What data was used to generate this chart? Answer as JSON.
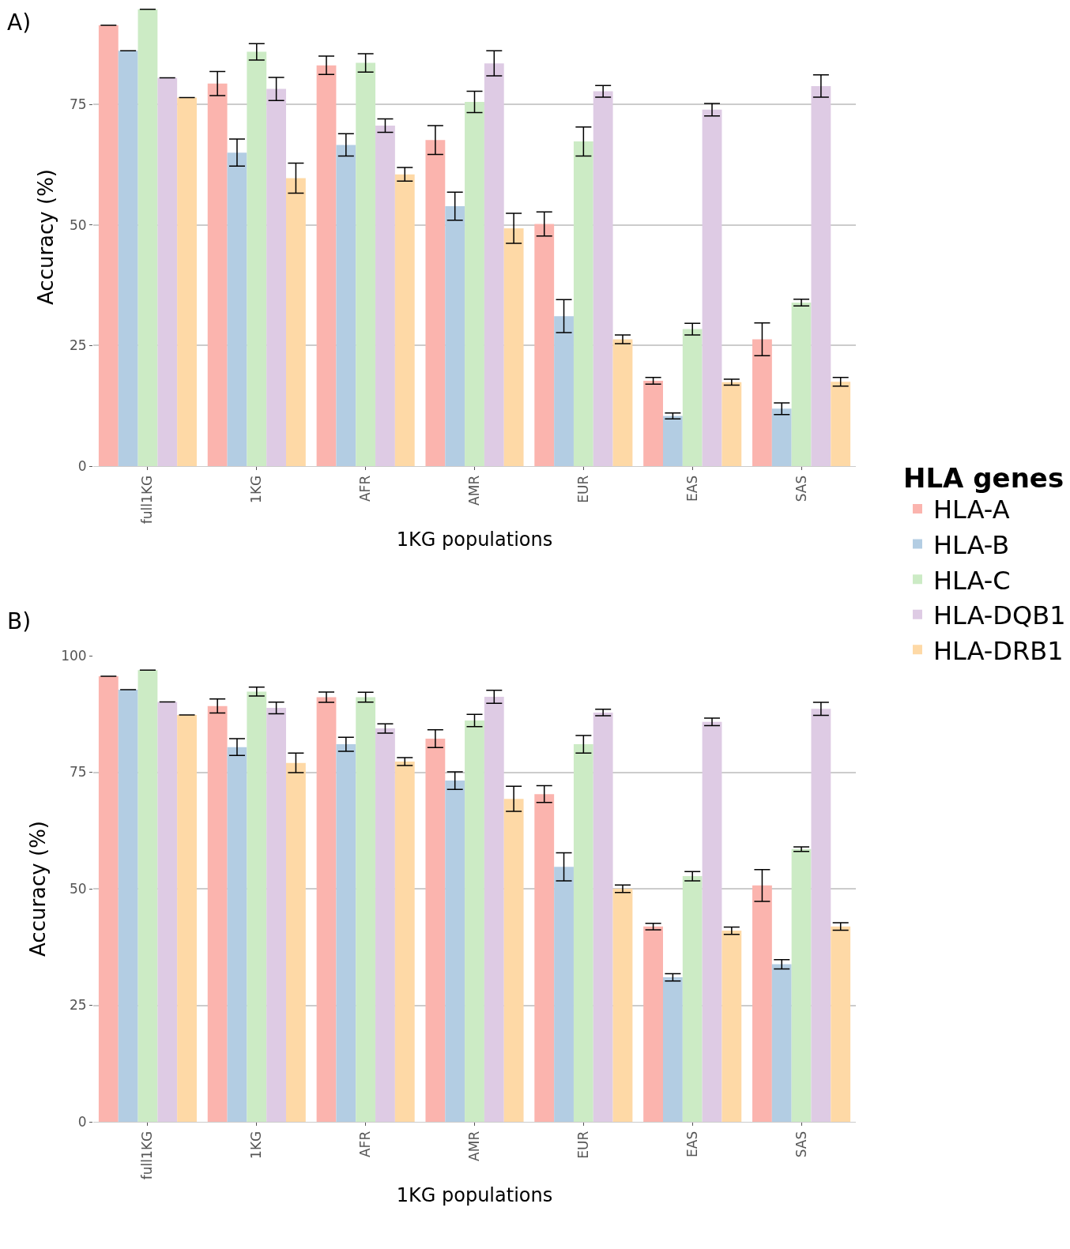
{
  "chart_data": [
    {
      "type": "bar",
      "xlabel": "1KG populations",
      "ylabel": "Accuracy (%)",
      "legend_title": "HLA genes",
      "legend": "right",
      "grid": "y",
      "annotations": [
        "A)"
      ],
      "categories": [
        "full1KG",
        "1KG",
        "AFR",
        "AMR",
        "EUR",
        "EAS",
        "SAS"
      ],
      "ylim": [
        0,
        95
      ],
      "yticks": [
        0,
        25,
        50,
        75
      ],
      "series": [
        {
          "name": "HLA-A",
          "color": "#fbb4ae",
          "values": [
            91.4,
            79.3,
            83.1,
            67.6,
            50.2,
            17.7,
            26.3
          ],
          "errors": [
            null,
            2.5,
            1.9,
            3.0,
            2.5,
            0.7,
            3.4
          ]
        },
        {
          "name": "HLA-B",
          "color": "#b3cde3",
          "values": [
            86.1,
            65.0,
            66.6,
            53.9,
            31.1,
            10.4,
            11.9
          ],
          "errors": [
            null,
            2.8,
            2.3,
            2.9,
            3.4,
            0.6,
            1.2
          ]
        },
        {
          "name": "HLA-C",
          "color": "#ccebc5",
          "values": [
            94.7,
            85.9,
            83.6,
            75.5,
            67.3,
            28.4,
            33.9
          ],
          "errors": [
            null,
            1.7,
            1.9,
            2.2,
            3.0,
            1.2,
            0.7
          ]
        },
        {
          "name": "HLA-DQB1",
          "color": "#decbe4",
          "values": [
            80.5,
            78.2,
            70.6,
            83.5,
            77.7,
            73.9,
            78.8
          ],
          "errors": [
            null,
            2.4,
            1.4,
            2.6,
            1.2,
            1.3,
            2.3
          ]
        },
        {
          "name": "HLA-DRB1",
          "color": "#fed9a6",
          "values": [
            76.4,
            59.7,
            60.5,
            49.3,
            26.3,
            17.4,
            17.5
          ],
          "errors": [
            null,
            3.1,
            1.4,
            3.1,
            0.9,
            0.6,
            0.9
          ]
        }
      ]
    },
    {
      "type": "bar",
      "xlabel": "1KG populations",
      "ylabel": "Accuracy (%)",
      "grid": "y",
      "annotations": [
        "B)"
      ],
      "categories": [
        "full1KG",
        "1KG",
        "AFR",
        "AMR",
        "EUR",
        "EAS",
        "SAS"
      ],
      "ylim": [
        0,
        100
      ],
      "yticks": [
        0,
        25,
        50,
        75,
        100
      ],
      "series": [
        {
          "color": "#fbb4ae",
          "values": [
            95.6,
            89.2,
            91.1,
            82.2,
            70.3,
            41.9,
            50.7
          ],
          "errors": [
            null,
            1.5,
            1.1,
            1.9,
            1.8,
            0.7,
            3.4
          ]
        },
        {
          "color": "#b3cde3",
          "values": [
            92.7,
            80.4,
            81.0,
            73.2,
            54.7,
            31.0,
            33.8
          ],
          "errors": [
            null,
            1.8,
            1.5,
            1.9,
            3.0,
            0.8,
            1.0
          ]
        },
        {
          "color": "#ccebc5",
          "values": [
            96.9,
            92.3,
            91.1,
            86.1,
            81.0,
            52.7,
            58.5
          ],
          "errors": [
            null,
            0.95,
            1.05,
            1.3,
            1.9,
            1.0,
            0.5
          ]
        },
        {
          "color": "#decbe4",
          "values": [
            90.1,
            88.8,
            84.4,
            91.2,
            87.8,
            85.8,
            88.6
          ],
          "errors": [
            null,
            1.25,
            1.0,
            1.4,
            0.7,
            0.8,
            1.4
          ]
        },
        {
          "color": "#fed9a6",
          "values": [
            87.3,
            77.0,
            77.3,
            69.3,
            50.0,
            41.0,
            41.9
          ],
          "errors": [
            null,
            2.1,
            0.85,
            2.7,
            0.8,
            0.8,
            0.8
          ]
        }
      ]
    }
  ]
}
